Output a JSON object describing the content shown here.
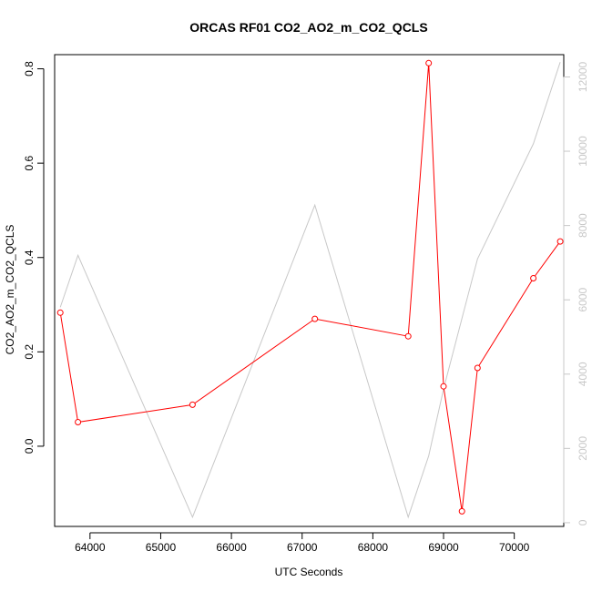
{
  "chart_data": {
    "type": "line",
    "title": "ORCAS RF01 CO2_AO2_m_CO2_QCLS",
    "xlabel": "UTC Seconds",
    "ylabel": "CO2_AO2_m_CO2_QCLS",
    "xlim": [
      63500,
      70700
    ],
    "ylim": [
      -0.17,
      0.83
    ],
    "y2lim": [
      -100,
      12600
    ],
    "grid": false,
    "x_ticks": [
      64000,
      65000,
      66000,
      67000,
      68000,
      69000,
      70000
    ],
    "y_ticks": [
      0.0,
      0.2,
      0.4,
      0.6,
      0.8
    ],
    "y2_ticks": [
      0,
      2000,
      4000,
      6000,
      8000,
      10000,
      12000
    ],
    "colors": {
      "primary": "#ff0000",
      "secondary": "#c8c8c8",
      "axis": "#000000",
      "right_axis": "#c8c8c8"
    },
    "series": [
      {
        "axis": "left",
        "style": "line+open-circles",
        "color": "#ff0000",
        "x": [
          63580,
          63830,
          65450,
          67180,
          68500,
          68790,
          69000,
          69260,
          69480,
          70270,
          70650
        ],
        "y": [
          0.283,
          0.051,
          0.088,
          0.27,
          0.233,
          0.812,
          0.127,
          -0.138,
          0.166,
          0.356,
          0.434
        ]
      },
      {
        "axis": "right",
        "style": "line",
        "color": "#c8c8c8",
        "x": [
          63580,
          63830,
          65450,
          67180,
          68500,
          68790,
          69000,
          69260,
          69480,
          70270,
          70650
        ],
        "y": [
          5800,
          7200,
          150,
          8550,
          150,
          1800,
          3600,
          5500,
          7100,
          10200,
          12400
        ]
      }
    ]
  }
}
